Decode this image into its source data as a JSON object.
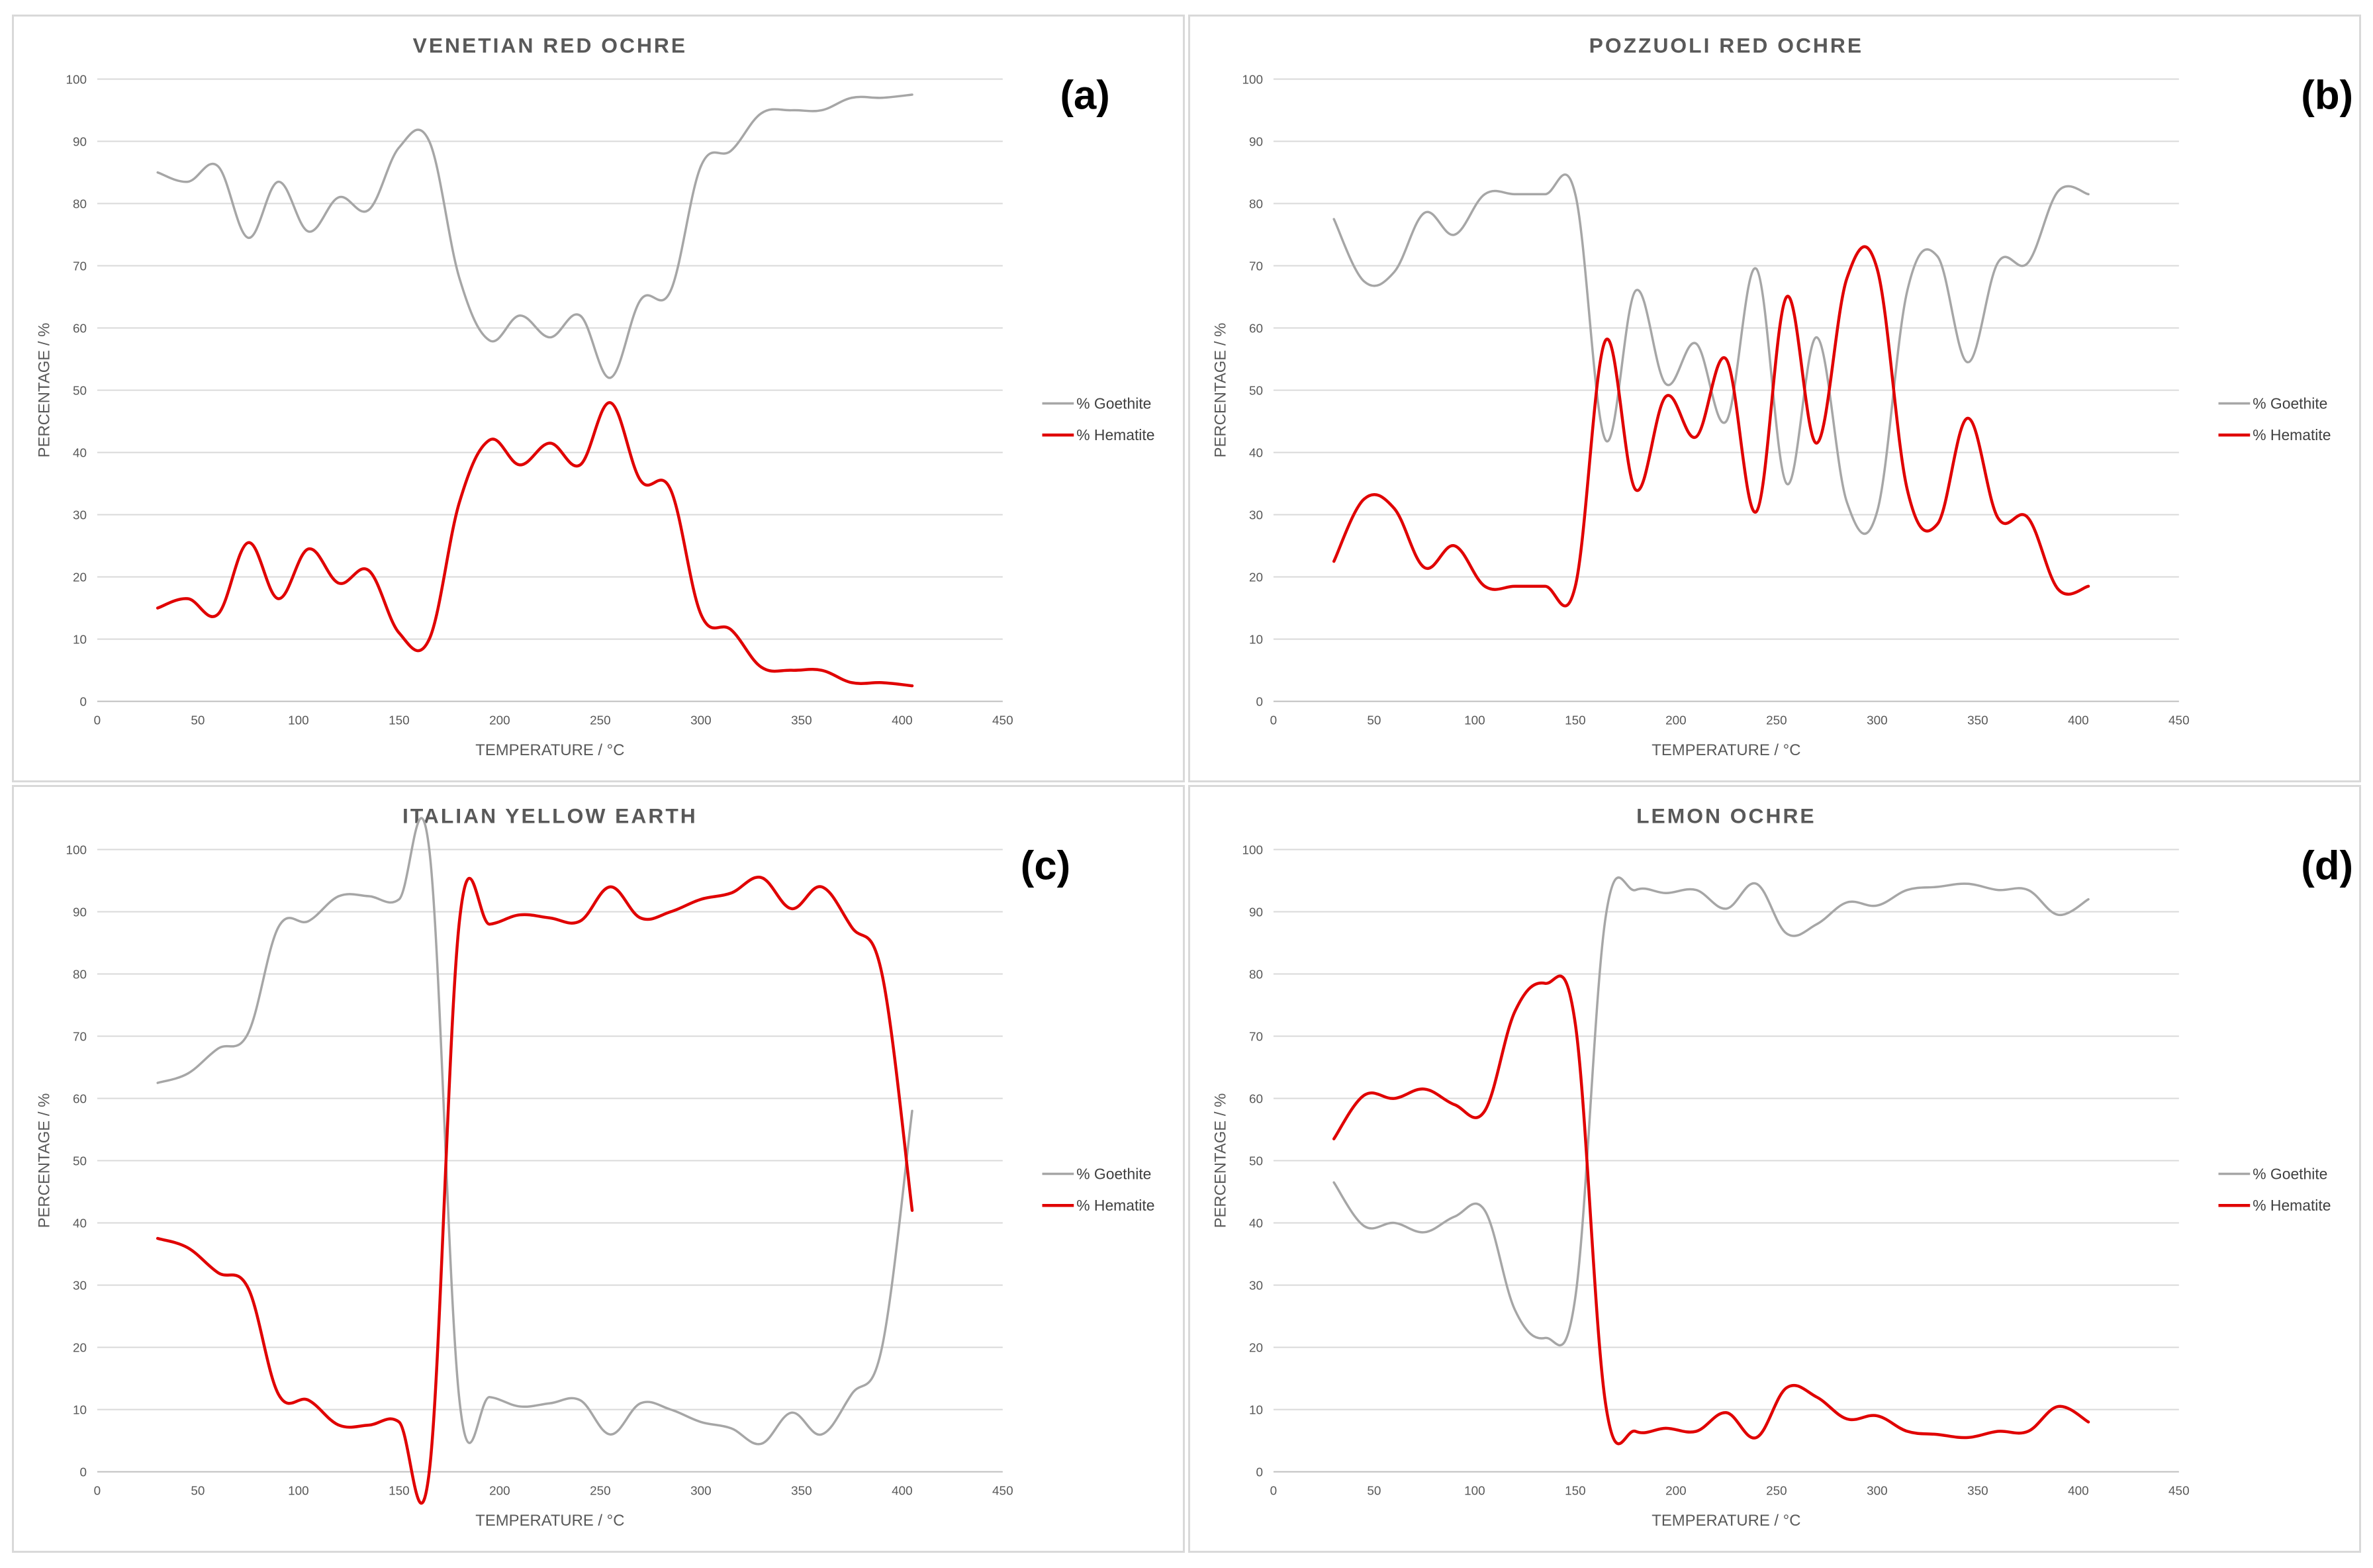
{
  "colors": {
    "goethite": "#a6a6a6",
    "hematite": "#e00000"
  },
  "chart_data": [
    {
      "type": "line",
      "panel_label": "(a)",
      "title": "VENETIAN  RED  OCHRE",
      "xlabel": "TEMPERATURE / °C",
      "ylabel": "PERCENTAGE / %",
      "xlim": [
        0,
        450
      ],
      "ylim": [
        0,
        100
      ],
      "xticks": [
        0,
        50,
        100,
        150,
        200,
        250,
        300,
        350,
        400,
        450
      ],
      "yticks": [
        0,
        10,
        20,
        30,
        40,
        50,
        60,
        70,
        80,
        90,
        100
      ],
      "legend_position": "right",
      "series": [
        {
          "name": "% Goethite",
          "color_key": "goethite",
          "x": [
            30,
            45,
            60,
            75,
            90,
            105,
            120,
            135,
            150,
            165,
            180,
            195,
            210,
            225,
            240,
            255,
            270,
            285,
            300,
            315,
            330,
            345,
            360,
            375,
            390,
            405
          ],
          "y": [
            85,
            83.5,
            86,
            74.5,
            83.5,
            75.5,
            81,
            79,
            89,
            90,
            68,
            58,
            62,
            58.5,
            62,
            52,
            64.5,
            66,
            86,
            88.5,
            94.5,
            95,
            95,
            97,
            97,
            97.5
          ]
        },
        {
          "name": "% Hematite",
          "color_key": "hematite",
          "x": [
            30,
            45,
            60,
            75,
            90,
            105,
            120,
            135,
            150,
            165,
            180,
            195,
            210,
            225,
            240,
            255,
            270,
            285,
            300,
            315,
            330,
            345,
            360,
            375,
            390,
            405
          ],
          "y": [
            15,
            16.5,
            14,
            25.5,
            16.5,
            24.5,
            19,
            21,
            11,
            10,
            32,
            42,
            38,
            41.5,
            38,
            48,
            35.5,
            34,
            14,
            11.5,
            5.5,
            5,
            5,
            3,
            3,
            2.5
          ]
        }
      ]
    },
    {
      "type": "line",
      "panel_label": "(b)",
      "title": "POZZUOLI  RED  OCHRE",
      "xlabel": "TEMPERATURE / °C",
      "ylabel": "PERCENTAGE / %",
      "xlim": [
        0,
        450
      ],
      "ylim": [
        0,
        100
      ],
      "xticks": [
        0,
        50,
        100,
        150,
        200,
        250,
        300,
        350,
        400,
        450
      ],
      "yticks": [
        0,
        10,
        20,
        30,
        40,
        50,
        60,
        70,
        80,
        90,
        100
      ],
      "legend_position": "right",
      "series": [
        {
          "name": "% Goethite",
          "color_key": "goethite",
          "x": [
            30,
            45,
            60,
            75,
            90,
            105,
            120,
            135,
            150,
            165,
            180,
            195,
            210,
            225,
            240,
            255,
            270,
            285,
            300,
            315,
            330,
            345,
            360,
            375,
            390,
            405
          ],
          "y": [
            77.5,
            67.5,
            69,
            78.5,
            75,
            81.5,
            81.5,
            81.5,
            81.5,
            42,
            66,
            51,
            57.5,
            45,
            69.5,
            35,
            58.5,
            32,
            30.5,
            66,
            71.5,
            54.5,
            70.5,
            70.5,
            82,
            81.5
          ]
        },
        {
          "name": "% Hematite",
          "color_key": "hematite",
          "x": [
            30,
            45,
            60,
            75,
            90,
            105,
            120,
            135,
            150,
            165,
            180,
            195,
            210,
            225,
            240,
            255,
            270,
            285,
            300,
            315,
            330,
            345,
            360,
            375,
            390,
            405
          ],
          "y": [
            22.5,
            32.5,
            31,
            21.5,
            25,
            18.5,
            18.5,
            18.5,
            18.5,
            58,
            34,
            49,
            42.5,
            55,
            30.5,
            65,
            41.5,
            68,
            69.5,
            34,
            28.5,
            45.5,
            29.5,
            29.5,
            18,
            18.5
          ]
        }
      ]
    },
    {
      "type": "line",
      "panel_label": "(c)",
      "title": "ITALIAN  YELLOW  EARTH",
      "xlabel": "TEMPERATURE / °C",
      "ylabel": "PERCENTAGE / %",
      "xlim": [
        0,
        450
      ],
      "ylim": [
        0,
        100
      ],
      "xticks": [
        0,
        50,
        100,
        150,
        200,
        250,
        300,
        350,
        400,
        450
      ],
      "yticks": [
        0,
        10,
        20,
        30,
        40,
        50,
        60,
        70,
        80,
        90,
        100
      ],
      "legend_position": "right",
      "series": [
        {
          "name": "% Goethite",
          "color_key": "goethite",
          "x": [
            30,
            45,
            60,
            75,
            90,
            105,
            120,
            135,
            150,
            165,
            180,
            195,
            210,
            225,
            240,
            255,
            270,
            285,
            300,
            315,
            330,
            345,
            360,
            375,
            390,
            405
          ],
          "y": [
            62.5,
            64,
            68,
            70.5,
            87.5,
            88.5,
            92.5,
            92.5,
            92,
            100,
            11.5,
            12,
            10.5,
            11,
            11.5,
            6,
            11,
            10,
            8,
            7,
            4.5,
            9.5,
            6,
            12.5,
            20,
            58
          ]
        },
        {
          "name": "% Hematite",
          "color_key": "hematite",
          "x": [
            30,
            45,
            60,
            75,
            90,
            105,
            120,
            135,
            150,
            165,
            180,
            195,
            210,
            225,
            240,
            255,
            270,
            285,
            300,
            315,
            330,
            345,
            360,
            375,
            390,
            405
          ],
          "y": [
            37.5,
            36,
            32,
            29.5,
            12.5,
            11.5,
            7.5,
            7.5,
            8,
            0,
            88.5,
            88,
            89.5,
            89,
            88.5,
            94,
            89,
            90,
            92,
            93,
            95.5,
            90.5,
            94,
            87.5,
            80,
            42
          ]
        }
      ]
    },
    {
      "type": "line",
      "panel_label": "(d)",
      "title": "LEMON  OCHRE",
      "xlabel": "TEMPERATURE / °C",
      "ylabel": "PERCENTAGE / %",
      "xlim": [
        0,
        450
      ],
      "ylim": [
        0,
        100
      ],
      "xticks": [
        0,
        50,
        100,
        150,
        200,
        250,
        300,
        350,
        400,
        450
      ],
      "yticks": [
        0,
        10,
        20,
        30,
        40,
        50,
        60,
        70,
        80,
        90,
        100
      ],
      "legend_position": "right",
      "series": [
        {
          "name": "% Goethite",
          "color_key": "goethite",
          "x": [
            30,
            45,
            60,
            75,
            90,
            105,
            120,
            135,
            150,
            165,
            180,
            195,
            210,
            225,
            240,
            255,
            270,
            285,
            300,
            315,
            330,
            345,
            360,
            375,
            390,
            405
          ],
          "y": [
            46.5,
            39.5,
            40,
            38.5,
            41,
            42,
            26,
            21.5,
            28,
            89,
            93.5,
            93,
            93.5,
            90.5,
            94.5,
            86.5,
            88,
            91.5,
            91,
            93.5,
            94,
            94.5,
            93.5,
            93.5,
            89.5,
            92
          ]
        },
        {
          "name": "% Hematite",
          "color_key": "hematite",
          "x": [
            30,
            45,
            60,
            75,
            90,
            105,
            120,
            135,
            150,
            165,
            180,
            195,
            210,
            225,
            240,
            255,
            270,
            285,
            300,
            315,
            330,
            345,
            360,
            375,
            390,
            405
          ],
          "y": [
            53.5,
            60.5,
            60,
            61.5,
            59,
            58,
            74,
            78.5,
            72,
            11,
            6.5,
            7,
            6.5,
            9.5,
            5.5,
            13.5,
            12,
            8.5,
            9,
            6.5,
            6,
            5.5,
            6.5,
            6.5,
            10.5,
            8
          ]
        }
      ]
    }
  ]
}
